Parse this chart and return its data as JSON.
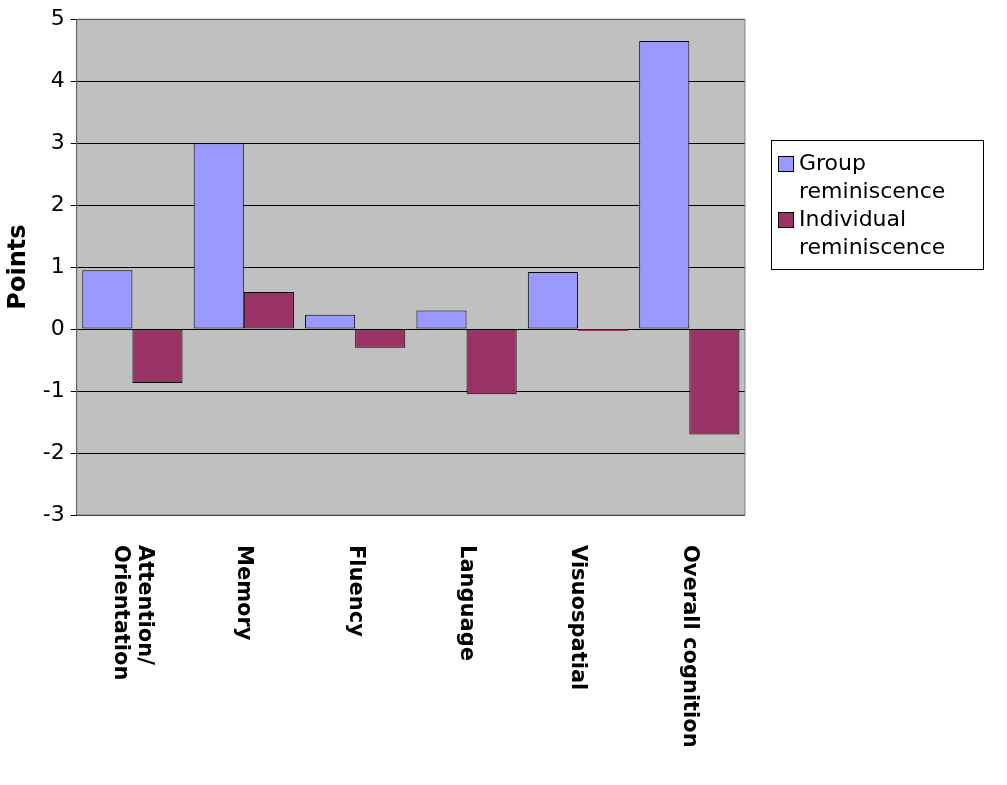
{
  "chart_data": {
    "type": "bar",
    "ylabel": "Points",
    "categories": [
      "Attention/ Orientation",
      "Memory",
      "Fluency",
      "Language",
      "Visuospatial",
      "Overall cognition"
    ],
    "series": [
      {
        "name": "Group reminiscence",
        "color": "#9999ff",
        "values": [
          0.95,
          3.0,
          0.23,
          0.3,
          0.92,
          4.65
        ]
      },
      {
        "name": "Individual reminiscence",
        "color": "#993366",
        "values": [
          -0.87,
          0.6,
          -0.3,
          -1.05,
          -0.03,
          -1.7
        ]
      }
    ],
    "ylim": [
      -3,
      5
    ],
    "yticks": [
      -3,
      -2,
      -1,
      0,
      1,
      2,
      3,
      4,
      5
    ],
    "grid": "y",
    "legend": "right"
  }
}
